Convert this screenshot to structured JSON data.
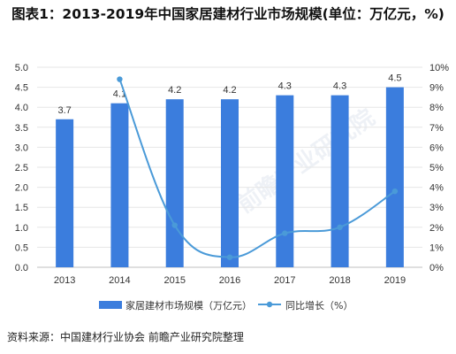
{
  "title": "图表1：2013-2019年中国家居建材行业市场规模(单位：万亿元，%)",
  "source": "资料来源：中国建材行业协会 前瞻产业研究院整理",
  "watermark": "前瞻产业研究院",
  "colors": {
    "bar": "#3b7ddd",
    "line": "#4a9ad8",
    "grid": "#e6e6e6"
  },
  "chart_data": {
    "type": "bar",
    "categories": [
      "2013",
      "2014",
      "2015",
      "2016",
      "2017",
      "2018",
      "2019"
    ],
    "series": [
      {
        "name": "家居建材市场规模（万亿元）",
        "kind": "bar",
        "axis": "left",
        "values": [
          3.7,
          4.1,
          4.2,
          4.2,
          4.3,
          4.3,
          4.5
        ],
        "labels": [
          "3.7",
          "4.1",
          "4.2",
          "4.2",
          "4.3",
          "4.3",
          "4.5"
        ]
      },
      {
        "name": "同比增长（%）",
        "kind": "line",
        "axis": "right",
        "values": [
          null,
          9.4,
          2.1,
          0.5,
          1.7,
          2.0,
          3.8
        ]
      }
    ],
    "y_left": {
      "lim": [
        0,
        5
      ],
      "ticks": [
        "0.0",
        "0.5",
        "1.0",
        "1.5",
        "2.0",
        "2.5",
        "3.0",
        "3.5",
        "4.0",
        "4.5",
        "5.0"
      ]
    },
    "y_right": {
      "lim": [
        0,
        10
      ],
      "ticks": [
        "0%",
        "1%",
        "2%",
        "3%",
        "4%",
        "5%",
        "6%",
        "7%",
        "8%",
        "9%",
        "10%"
      ]
    },
    "grid": true,
    "legend": "bottom"
  }
}
